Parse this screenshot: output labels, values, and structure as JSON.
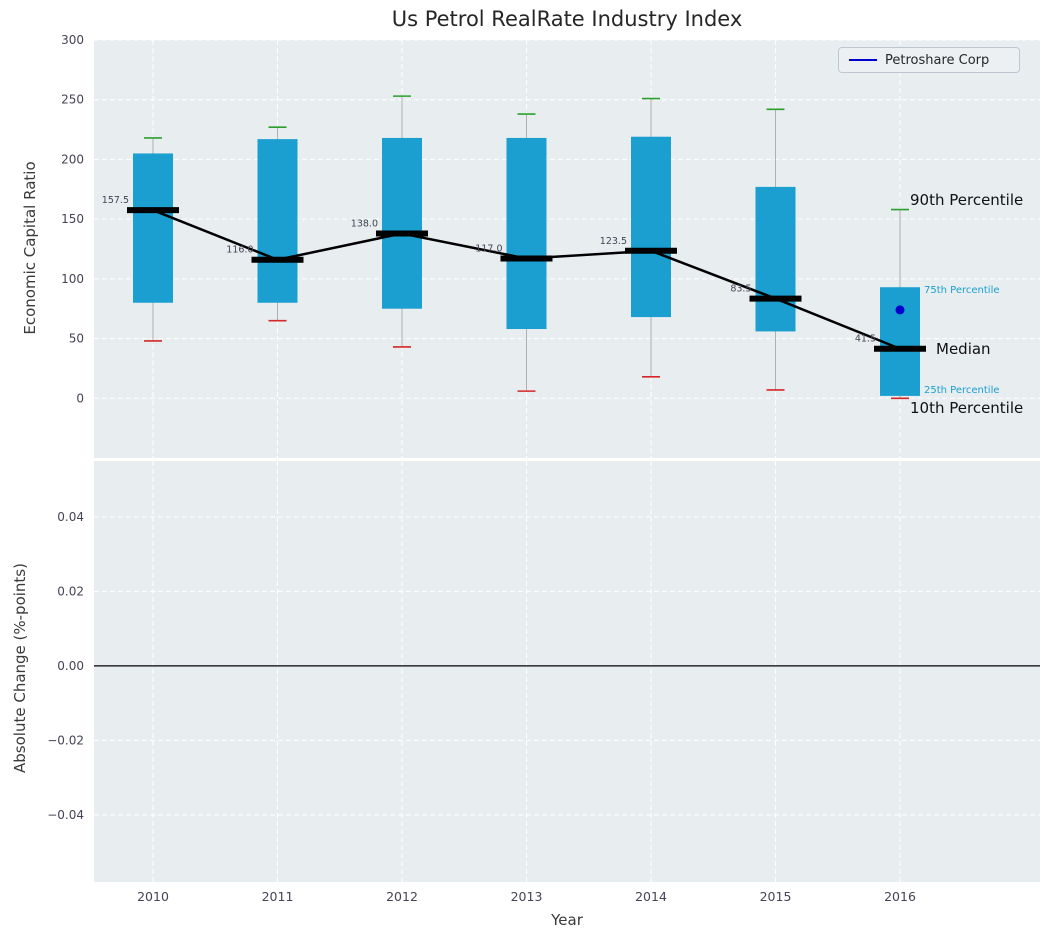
{
  "figure": {
    "title": "Us Petrol RealRate Industry Index",
    "xlabel": "Year",
    "background_color": "#ffffff",
    "panel_color": "#e8edf0"
  },
  "chart_data": [
    {
      "type": "boxplot",
      "title": "Us Petrol RealRate Industry Index",
      "xlabel": "Year",
      "ylabel": "Economic Capital Ratio",
      "ylim": [
        -50,
        300
      ],
      "yticks": [
        0,
        50,
        100,
        150,
        200,
        250,
        300
      ],
      "ytick_labels": [
        "0",
        "50",
        "100",
        "150",
        "200",
        "250",
        "300"
      ],
      "x": [
        2010,
        2011,
        2012,
        2013,
        2014,
        2015,
        2016
      ],
      "xtick_labels": [
        "2010",
        "2011",
        "2012",
        "2013",
        "2014",
        "2015",
        "2016"
      ],
      "grid": true,
      "legend_position": "upper right",
      "boxes": [
        {
          "year": 2010,
          "p10": 48,
          "p25": 80,
          "median": 157.5,
          "p75": 205,
          "p90": 218,
          "median_label": "157.5"
        },
        {
          "year": 2011,
          "p10": 65,
          "p25": 80,
          "median": 116.0,
          "p75": 217,
          "p90": 227,
          "median_label": "116.0"
        },
        {
          "year": 2012,
          "p10": 43,
          "p25": 75,
          "median": 138.0,
          "p75": 218,
          "p90": 253,
          "median_label": "138.0"
        },
        {
          "year": 2013,
          "p10": 6,
          "p25": 58,
          "median": 117.0,
          "p75": 218,
          "p90": 238,
          "median_label": "117.0"
        },
        {
          "year": 2014,
          "p10": 18,
          "p25": 68,
          "median": 123.5,
          "p75": 219,
          "p90": 251,
          "median_label": "123.5"
        },
        {
          "year": 2015,
          "p10": 7,
          "p25": 56,
          "median": 83.5,
          "p75": 177,
          "p90": 242,
          "median_label": "83.5"
        },
        {
          "year": 2016,
          "p10": 0,
          "p25": 2,
          "median": 41.5,
          "p75": 93,
          "p90": 158,
          "median_label": "41.5"
        }
      ],
      "company_series": {
        "name": "Petroshare Corp",
        "color": "#0000cd",
        "points": [
          {
            "year": 2016,
            "value": 74
          }
        ]
      },
      "legend": {
        "entries": [
          {
            "label": "Petroshare Corp",
            "color": "#0000cd"
          }
        ]
      },
      "annotations": {
        "p90": "90th Percentile",
        "p75": "75th Percentile",
        "median": "Median",
        "p25": "25th Percentile",
        "p10": "10th Percentile"
      },
      "colors": {
        "box": "#1a9fd0",
        "whisker": "#b0b0b0",
        "cap_top": "#2ca02c",
        "cap_bottom": "#d62728",
        "median": "#000000",
        "trend": "#000000"
      }
    },
    {
      "type": "line",
      "ylabel": "Absolute Change (%-points)",
      "ylim": [
        -0.058,
        0.055
      ],
      "yticks": [
        0.04,
        0.02,
        0,
        -0.02,
        -0.04
      ],
      "ytick_labels": [
        "0.04",
        "0.02",
        "0.00",
        "−0.02",
        "−0.04"
      ],
      "zero_line": true,
      "zero_line_color": "#000000",
      "grid": true,
      "series": []
    }
  ]
}
